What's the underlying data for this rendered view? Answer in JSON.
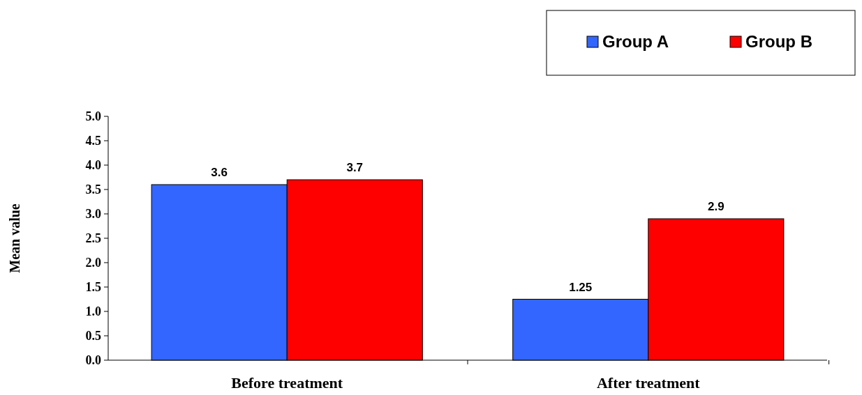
{
  "chart_data": {
    "type": "bar",
    "ylabel": "Mean value",
    "categories": [
      "Before treatment",
      "After treatment"
    ],
    "series": [
      {
        "name": "Group A",
        "color": "#3366ff",
        "values": [
          3.6,
          1.25
        ]
      },
      {
        "name": "Group B",
        "color": "#ff0000",
        "values": [
          3.7,
          2.9
        ]
      }
    ],
    "ylim": [
      0,
      5
    ],
    "yticks": [
      {
        "value": 0,
        "label": "0.0"
      },
      {
        "value": 0.5,
        "label": "0.5"
      },
      {
        "value": 1,
        "label": "1.0"
      },
      {
        "value": 1.5,
        "label": "1.5"
      },
      {
        "value": 2,
        "label": "2.0"
      },
      {
        "value": 2.5,
        "label": "2.5"
      },
      {
        "value": 3,
        "label": "3.0"
      },
      {
        "value": 3.5,
        "label": "3.5"
      },
      {
        "value": 4,
        "label": "4.0"
      },
      {
        "value": 4.5,
        "label": "4.5"
      },
      {
        "value": 5,
        "label": "5.0"
      }
    ],
    "data_labels": true,
    "legend": "top right",
    "grid": false
  }
}
